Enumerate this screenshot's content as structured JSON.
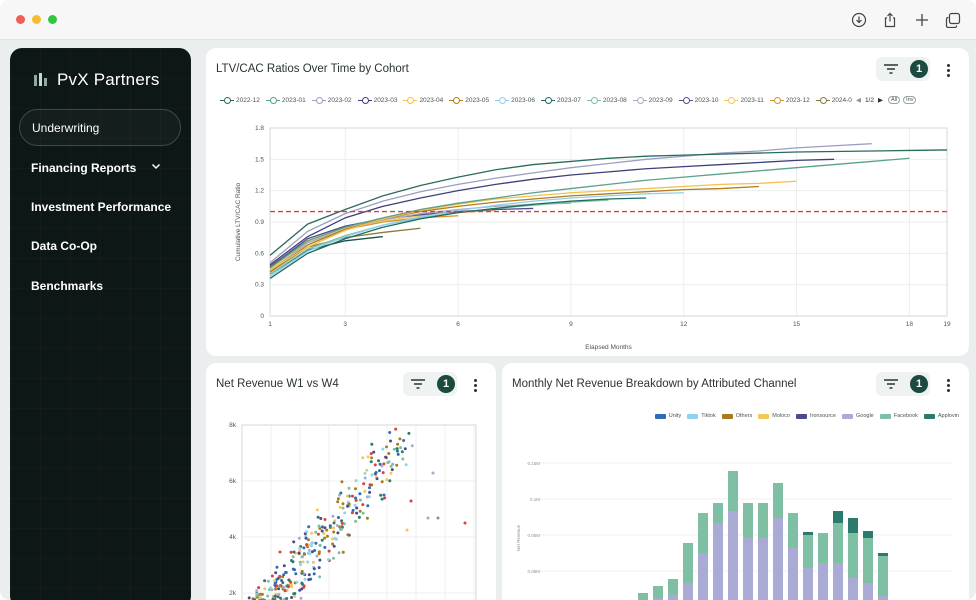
{
  "window": {
    "dots": [
      "#ee5f57",
      "#f5bd30",
      "#2fc840"
    ],
    "toolbar_icons": [
      "download-icon",
      "share-icon",
      "plus-icon",
      "tabs-icon"
    ]
  },
  "sidebar": {
    "brand": "PvX Partners",
    "items": [
      {
        "label": "Underwriting",
        "active": true
      },
      {
        "label": "Financing Reports",
        "has_chevron": true
      },
      {
        "label": "Investment Performance"
      },
      {
        "label": "Data Co-Op"
      },
      {
        "label": "Benchmarks"
      }
    ]
  },
  "colors": {
    "accent": "#1a4a40",
    "sidebar_bg": "#0d1715",
    "reference_line": "#d94040"
  },
  "cards": {
    "ltv": {
      "title": "LTV/CAC Ratios Over Time by Cohort",
      "filter_count": "1",
      "legend_page": "1/2",
      "legend_all": "All",
      "legend_inv": "Inv"
    },
    "w1w4": {
      "title": "Net Revenue W1 vs W4",
      "filter_count": "1"
    },
    "channel": {
      "title": "Monthly Net Revenue Breakdown by Attributed Channel",
      "filter_count": "1"
    }
  },
  "chart_data": [
    {
      "type": "line",
      "xlabel": "Elapsed Months",
      "ylabel": "Cumulative LTV/CAC Ratio",
      "xlim": [
        1,
        19
      ],
      "ylim": [
        0,
        1.8
      ],
      "x_ticks": [
        "1",
        "3",
        "6",
        "9",
        "12",
        "15",
        "18",
        "19"
      ],
      "y_ticks": [
        "0",
        "0.3",
        "0.6",
        "0.9",
        "1.2",
        "1.5",
        "1.8"
      ],
      "grid": true,
      "legend_position": "top",
      "reference_line": {
        "y": 1.0,
        "style": "dashed"
      },
      "series": [
        {
          "name": "2022-12",
          "color": "#2a6b5e",
          "values": [
            0.58,
            0.88,
            1.02,
            1.15,
            1.25,
            1.33,
            1.4,
            1.45,
            1.48,
            1.51,
            1.53,
            1.54,
            1.55,
            1.56,
            1.57,
            1.575,
            1.58,
            1.585,
            1.59
          ]
        },
        {
          "name": "2023-01",
          "color": "#5aa18e",
          "values": [
            0.46,
            0.72,
            0.85,
            0.94,
            1.02,
            1.08,
            1.13,
            1.18,
            1.22,
            1.26,
            1.3,
            1.33,
            1.36,
            1.39,
            1.42,
            1.45,
            1.48,
            1.51
          ]
        },
        {
          "name": "2023-02",
          "color": "#9a9fc4",
          "values": [
            0.51,
            0.81,
            0.98,
            1.1,
            1.19,
            1.26,
            1.32,
            1.37,
            1.42,
            1.46,
            1.5,
            1.53,
            1.56,
            1.58,
            1.61,
            1.63,
            1.65
          ]
        },
        {
          "name": "2023-03",
          "color": "#3d3f7a",
          "values": [
            0.49,
            0.76,
            0.94,
            1.05,
            1.13,
            1.2,
            1.26,
            1.31,
            1.35,
            1.38,
            1.41,
            1.43,
            1.45,
            1.47,
            1.49,
            1.5
          ]
        },
        {
          "name": "2023-04",
          "color": "#f2c14e",
          "values": [
            0.44,
            0.66,
            0.82,
            0.93,
            1.01,
            1.07,
            1.12,
            1.15,
            1.18,
            1.2,
            1.22,
            1.24,
            1.26,
            1.27,
            1.29
          ]
        },
        {
          "name": "2023-05",
          "color": "#b07d1a",
          "values": [
            0.42,
            0.68,
            0.83,
            0.93,
            1.0,
            1.05,
            1.09,
            1.12,
            1.15,
            1.17,
            1.19,
            1.21,
            1.22,
            1.24
          ]
        },
        {
          "name": "2023-06",
          "color": "#8fd0ee",
          "values": [
            0.38,
            0.62,
            0.76,
            0.87,
            0.95,
            1.01,
            1.06,
            1.1,
            1.13,
            1.15,
            1.17,
            1.18
          ]
        },
        {
          "name": "2023-07",
          "color": "#1e6b63",
          "values": [
            0.36,
            0.6,
            0.74,
            0.85,
            0.93,
            0.99,
            1.03,
            1.07,
            1.1,
            1.12,
            1.13
          ]
        },
        {
          "name": "2023-08",
          "color": "#7fbf9f",
          "values": [
            0.4,
            0.64,
            0.77,
            0.87,
            0.94,
            0.99,
            1.03,
            1.06,
            1.09,
            1.11
          ]
        },
        {
          "name": "2023-09",
          "color": "#a9abc4",
          "values": [
            0.43,
            0.7,
            0.83,
            0.92,
            0.98,
            1.02,
            1.05,
            1.07,
            1.08
          ]
        },
        {
          "name": "2023-10",
          "color": "#4e4f8a",
          "values": [
            0.47,
            0.74,
            0.86,
            0.93,
            0.97,
            1.0,
            1.02,
            1.03
          ]
        },
        {
          "name": "2023-11",
          "color": "#f5c75a",
          "values": [
            0.45,
            0.71,
            0.84,
            0.91,
            0.96,
            0.99,
            1.01
          ]
        },
        {
          "name": "2023-12",
          "color": "#d4922a",
          "values": [
            0.48,
            0.72,
            0.83,
            0.9,
            0.94,
            0.96
          ]
        },
        {
          "name": "2024-0",
          "color": "#8a7a3a",
          "values": [
            0.42,
            0.66,
            0.75,
            0.8,
            0.84
          ]
        },
        {
          "name": "",
          "color": "#1a5048",
          "values": [
            0.4,
            0.63,
            0.72,
            0.76
          ]
        }
      ]
    },
    {
      "type": "scatter",
      "y_ticks": [
        "8k",
        "6k",
        "4k",
        "2k"
      ],
      "ylim": [
        0,
        8000
      ],
      "grid": true
    },
    {
      "type": "bar",
      "stacked": true,
      "legend_position": "top-right",
      "ylabel": "Net Revenue",
      "y_ticks": [
        "0.15M",
        "0.1M",
        "0.05M",
        "0.05M"
      ],
      "series": [
        {
          "name": "Unity",
          "color": "#2e6cb8"
        },
        {
          "name": "Tiktok",
          "color": "#8fd3f2"
        },
        {
          "name": "Others",
          "color": "#a67c1f"
        },
        {
          "name": "Moloco",
          "color": "#f2c75c"
        },
        {
          "name": "Ironsource",
          "color": "#4a4b8c"
        },
        {
          "name": "Google",
          "color": "#a9abd4"
        },
        {
          "name": "Facebook",
          "color": "#7fbfa4"
        },
        {
          "name": "Applovin",
          "color": "#2a7a6e"
        }
      ]
    }
  ]
}
